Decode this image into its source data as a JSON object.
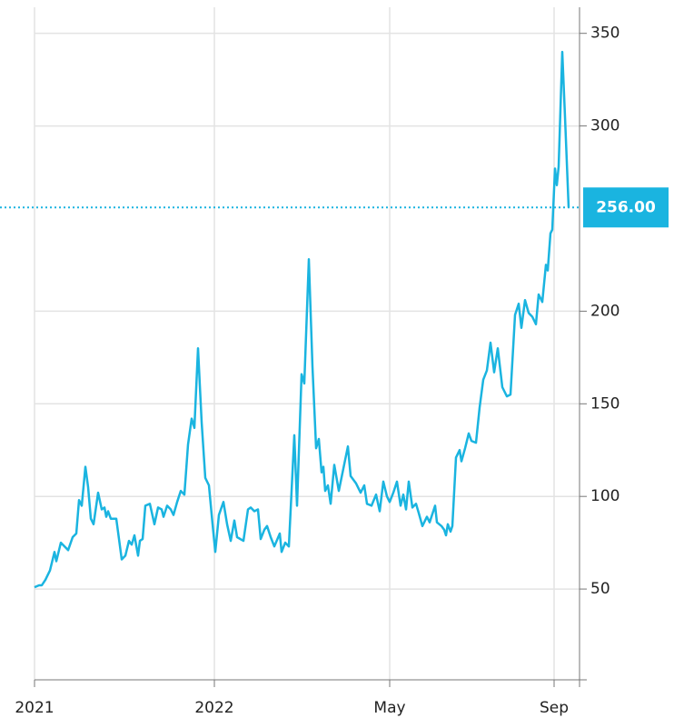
{
  "chart_data": {
    "type": "line",
    "x": [
      0,
      5,
      8,
      12,
      17,
      22,
      24,
      29,
      37,
      42,
      46,
      49,
      52,
      56,
      59,
      62,
      65,
      70,
      74,
      77,
      79,
      81,
      84,
      90,
      96,
      100,
      104,
      107,
      110,
      114,
      116,
      119,
      122,
      127,
      132,
      136,
      140,
      142,
      146,
      150,
      153,
      157,
      161,
      165,
      169,
      173,
      176,
      180,
      184,
      188,
      192,
      196,
      199,
      203,
      208,
      212,
      216,
      220,
      223,
      230,
      235,
      238,
      242,
      246,
      249,
      253,
      256,
      260,
      264,
      270,
      272,
      276,
      280,
      286,
      289,
      294,
      297,
      302,
      306,
      310,
      313,
      316,
      318,
      320,
      323,
      326,
      330,
      335,
      340,
      345,
      348,
      354,
      359,
      363,
      366,
      371,
      376,
      380,
      384,
      388,
      391,
      395,
      399,
      403,
      406,
      409,
      412,
      416,
      420,
      423,
      427,
      432,
      435,
      441,
      443,
      448,
      451,
      453,
      455,
      458,
      460,
      464,
      468,
      470,
      474,
      478,
      481,
      486,
      490,
      494,
      498,
      502,
      506,
      510,
      515,
      520,
      524,
      529,
      533,
      536,
      540,
      544,
      548,
      552,
      555,
      559,
      563,
      565,
      568,
      570,
      573,
      575,
      577,
      581,
      584,
      588
    ],
    "series": [
      {
        "color": "#1ab4e0",
        "values": [
          51,
          52,
          52,
          55,
          60,
          70,
          65,
          75,
          71,
          78,
          80,
          98,
          95,
          116,
          105,
          88,
          85,
          102,
          93,
          94,
          89,
          92,
          88,
          88,
          66,
          68,
          76,
          74,
          79,
          68,
          76,
          77,
          95,
          96,
          85,
          94,
          93,
          89,
          95,
          93,
          90,
          97,
          103,
          101,
          128,
          142,
          137,
          180,
          140,
          110,
          106,
          85,
          70,
          90,
          97,
          85,
          76,
          87,
          78,
          76,
          93,
          94,
          92,
          93,
          77,
          82,
          84,
          78,
          73,
          80,
          70,
          75,
          73,
          133,
          95,
          166,
          161,
          228,
          170,
          126,
          131,
          113,
          116,
          103,
          106,
          96,
          117,
          103,
          115,
          127,
          111,
          107,
          102,
          106,
          96,
          95,
          101,
          92,
          108,
          100,
          97,
          102,
          108,
          95,
          101,
          93,
          108,
          94,
          96,
          91,
          84,
          89,
          86,
          95,
          86,
          84,
          82,
          79,
          85,
          81,
          84,
          121,
          125,
          119,
          126,
          134,
          130,
          129,
          148,
          163,
          168,
          183,
          167,
          180,
          159,
          154,
          155,
          198,
          204,
          191,
          206,
          199,
          197,
          193,
          209,
          205,
          225,
          222,
          242,
          244,
          277,
          268,
          278,
          340,
          305,
          256
        ]
      }
    ],
    "xlim": [
      0,
      600
    ],
    "xticks": [
      {
        "value": 0,
        "label": "2021"
      },
      {
        "value": 198,
        "label": "2022"
      },
      {
        "value": 391,
        "label": "May"
      },
      {
        "value": 572,
        "label": "Sep"
      }
    ],
    "ylim": [
      0,
      368
    ],
    "yticks": [
      50,
      100,
      150,
      200,
      300,
      350
    ],
    "grid": true,
    "reference_line": {
      "value": 256,
      "label": "256.00",
      "color": "#1ab4e0"
    }
  }
}
